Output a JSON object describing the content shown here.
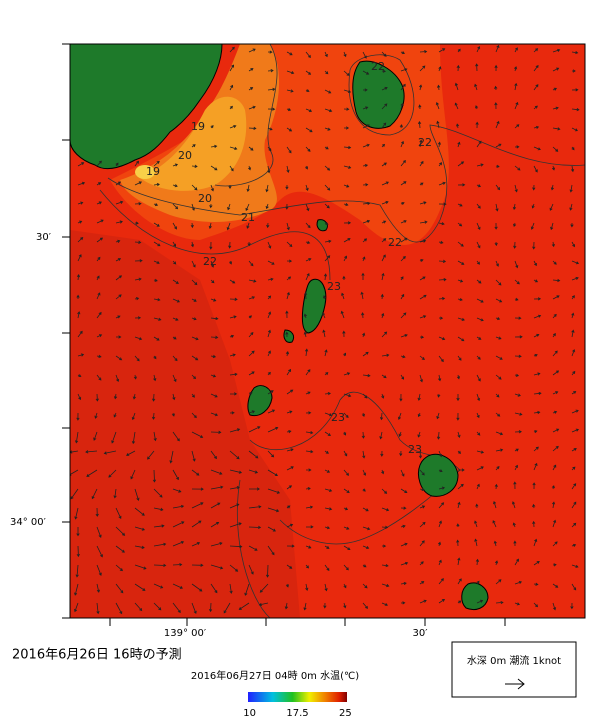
{
  "map": {
    "title": "2016年6月26日  16時の予測",
    "subtitle": "2016年06月27日 04時 0m 水温(℃)",
    "lat_labels": [
      "30′",
      "34° 00′"
    ],
    "lon_labels": [
      "139° 00′",
      "30′"
    ],
    "contour_labels": [
      "19",
      "20",
      "19",
      "20",
      "21",
      "22",
      "22",
      "22",
      "22",
      "23",
      "23",
      "23"
    ],
    "colorbar": {
      "ticks": [
        10,
        17.5,
        25
      ]
    },
    "legend": {
      "label": "水深 0m 潮流 1knot"
    }
  }
}
